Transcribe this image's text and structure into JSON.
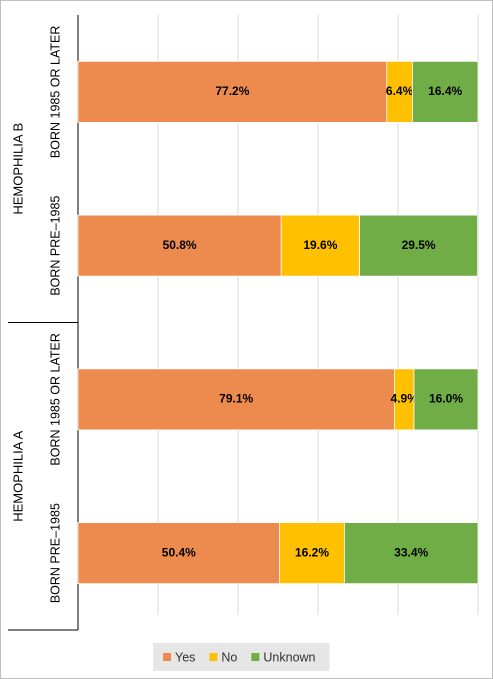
{
  "chart_data": {
    "type": "stacked-barh",
    "groups": [
      {
        "name": "HEMOPHILIA B",
        "categories": [
          "BORN 1985 OR LATER",
          "BORN PRE–1985"
        ]
      },
      {
        "name": "HEMOPHILIA A",
        "categories": [
          "BORN 1985 OR LATER",
          "BORN PRE–1985"
        ]
      }
    ],
    "series": [
      {
        "name": "Yes",
        "color": "#ed8b4f",
        "values": [
          77.2,
          50.8,
          79.1,
          50.4
        ],
        "value_labels": [
          "77.2%",
          "50.8%",
          "79.1%",
          "50.4%"
        ]
      },
      {
        "name": "No",
        "color": "#ffc000",
        "values": [
          6.4,
          19.6,
          4.9,
          16.2
        ],
        "value_labels": [
          "6.4%",
          "19.6%",
          "4.9%",
          "16.2%"
        ]
      },
      {
        "name": "Unknown",
        "color": "#70ad47",
        "values": [
          16.4,
          29.5,
          16.0,
          33.4
        ],
        "value_labels": [
          "16.4%",
          "29.5%",
          "16.0%",
          "33.4%"
        ]
      }
    ],
    "xlim": [
      0,
      100
    ],
    "xticks": [
      0,
      20,
      40,
      60,
      80,
      100
    ],
    "grid": true,
    "legend": "bottom"
  }
}
